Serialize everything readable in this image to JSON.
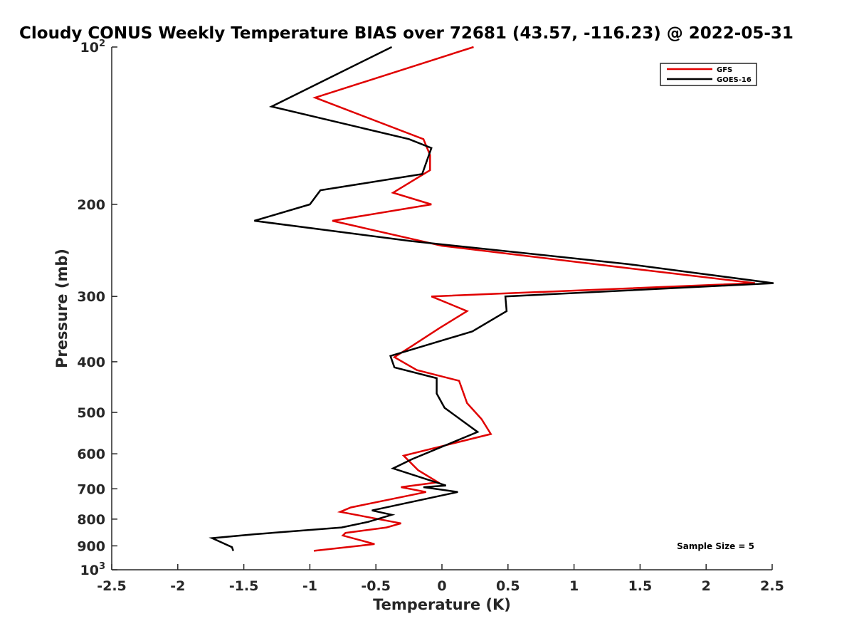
{
  "chart_data": {
    "type": "line",
    "title": "Cloudy CONUS Weekly Temperature BIAS over 72681 (43.57, -116.23) @ 2022-05-31",
    "xlabel": "Temperature (K)",
    "ylabel": "Pressure (mb)",
    "xlim": [
      -2.5,
      2.5
    ],
    "ylim": [
      100,
      1000
    ],
    "y_scale": "log",
    "y_reversed": true,
    "x_ticks": [
      "-2.5",
      "-2",
      "-1.5",
      "-1",
      "-0.5",
      "0",
      "0.5",
      "1",
      "1.5",
      "2",
      "2.5"
    ],
    "x_tick_values": [
      -2.5,
      -2,
      -1.5,
      -1,
      -0.5,
      0,
      0.5,
      1,
      1.5,
      2,
      2.5
    ],
    "y_ticks": [
      {
        "value": 100,
        "base": "10",
        "exp": "2"
      },
      {
        "value": 200,
        "label": "200"
      },
      {
        "value": 300,
        "label": "300"
      },
      {
        "value": 400,
        "label": "400"
      },
      {
        "value": 500,
        "label": "500"
      },
      {
        "value": 600,
        "label": "600"
      },
      {
        "value": 700,
        "label": "700"
      },
      {
        "value": 800,
        "label": "800"
      },
      {
        "value": 900,
        "label": "900"
      },
      {
        "value": 1000,
        "base": "10",
        "exp": "3"
      }
    ],
    "legend_position": "top-right",
    "grid": false,
    "annotation": "Sample Size = 5",
    "series": [
      {
        "name": "GFS",
        "color": "#e00000",
        "points": [
          [
            0.24,
            100
          ],
          [
            -0.96,
            125
          ],
          [
            -0.14,
            150
          ],
          [
            -0.09,
            161
          ],
          [
            -0.09,
            172
          ],
          [
            -0.37,
            190
          ],
          [
            -0.08,
            200
          ],
          [
            -0.83,
            215
          ],
          [
            0.0,
            240
          ],
          [
            1.42,
            265
          ],
          [
            2.37,
            283
          ],
          [
            -0.08,
            300
          ],
          [
            0.19,
            320
          ],
          [
            -0.02,
            345
          ],
          [
            -0.24,
            375
          ],
          [
            -0.36,
            392
          ],
          [
            -0.19,
            415
          ],
          [
            0.13,
            435
          ],
          [
            0.19,
            480
          ],
          [
            0.3,
            515
          ],
          [
            0.37,
            550
          ],
          [
            -0.29,
            605
          ],
          [
            -0.18,
            645
          ],
          [
            -0.03,
            680
          ],
          [
            -0.31,
            695
          ],
          [
            -0.12,
            710
          ],
          [
            -0.69,
            760
          ],
          [
            -0.77,
            775
          ],
          [
            -0.31,
            815
          ],
          [
            -0.42,
            830
          ],
          [
            -0.73,
            850
          ],
          [
            -0.75,
            860
          ],
          [
            -0.51,
            893
          ],
          [
            -0.97,
            920
          ]
        ]
      },
      {
        "name": "GOES-16",
        "color": "#000000",
        "points": [
          [
            -0.38,
            100
          ],
          [
            -1.29,
            130
          ],
          [
            -0.25,
            150
          ],
          [
            -0.08,
            156
          ],
          [
            -0.15,
            175
          ],
          [
            -0.92,
            188
          ],
          [
            -1.0,
            200
          ],
          [
            -1.42,
            215
          ],
          [
            -0.24,
            235
          ],
          [
            1.4,
            260
          ],
          [
            2.51,
            283
          ],
          [
            0.48,
            300
          ],
          [
            0.49,
            320
          ],
          [
            0.23,
            350
          ],
          [
            -0.39,
            390
          ],
          [
            -0.36,
            410
          ],
          [
            -0.04,
            430
          ],
          [
            -0.04,
            460
          ],
          [
            0.02,
            490
          ],
          [
            0.27,
            545
          ],
          [
            -0.23,
            615
          ],
          [
            -0.37,
            640
          ],
          [
            0.03,
            690
          ],
          [
            -0.14,
            695
          ],
          [
            0.12,
            710
          ],
          [
            -0.53,
            770
          ],
          [
            -0.38,
            785
          ],
          [
            -0.56,
            810
          ],
          [
            -0.76,
            830
          ],
          [
            -1.42,
            855
          ],
          [
            -1.74,
            870
          ],
          [
            -1.59,
            905
          ],
          [
            -1.58,
            920
          ]
        ]
      }
    ]
  }
}
